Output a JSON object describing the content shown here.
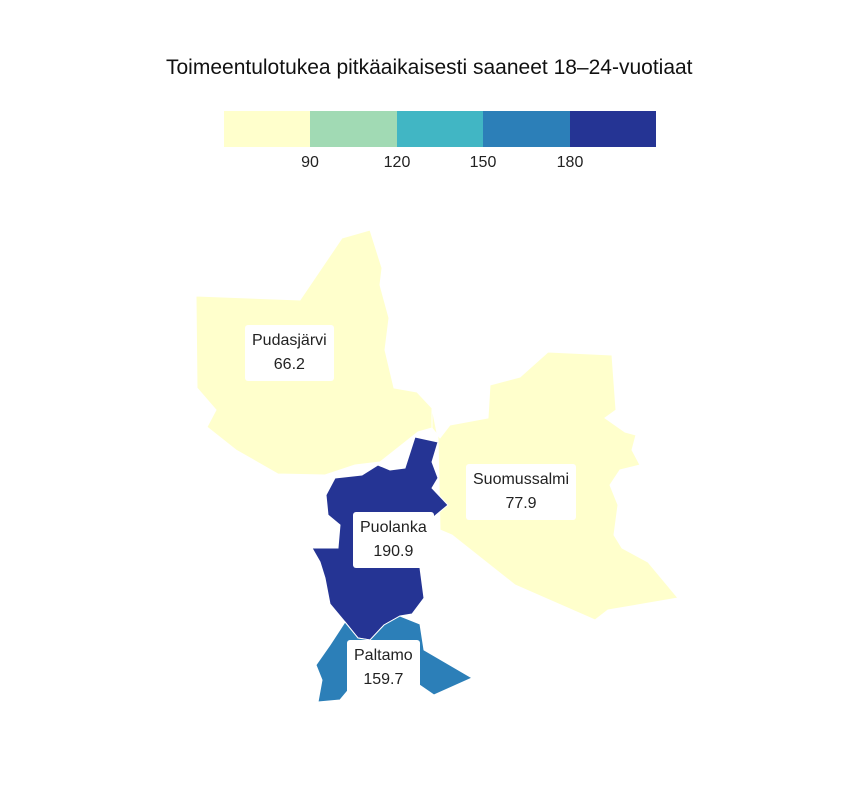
{
  "title": "Toimeentulotukea pitkäaikaisesti saaneet 18–24-vuotiaat",
  "legend": {
    "colors": [
      "#ffffcc",
      "#a1dab4",
      "#41b6c4",
      "#2c7fb8",
      "#253494"
    ],
    "ticks": [
      "90",
      "120",
      "150",
      "180"
    ]
  },
  "regions": [
    {
      "name": "Pudasjärvi",
      "value": "66.2",
      "color": "#ffffcc"
    },
    {
      "name": "Suomussalmi",
      "value": "77.9",
      "color": "#ffffcc"
    },
    {
      "name": "Puolanka",
      "value": "190.9",
      "color": "#253494"
    },
    {
      "name": "Paltamo",
      "value": "159.7",
      "color": "#2c7fb8"
    }
  ]
}
